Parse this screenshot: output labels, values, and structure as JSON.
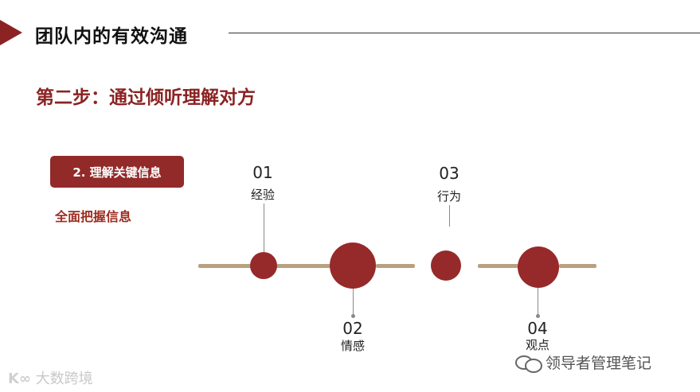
{
  "header": {
    "title": "团队内的有效沟通",
    "step_title": "第二步：通过倾听理解对方"
  },
  "left_panel": {
    "tag_label": "2. 理解关键信息",
    "subtitle": "全面把握信息"
  },
  "timeline": {
    "items": [
      {
        "number": "01",
        "label": "经验"
      },
      {
        "number": "02",
        "label": "情感"
      },
      {
        "number": "03",
        "label": "行为"
      },
      {
        "number": "04",
        "label": "观点"
      }
    ]
  },
  "watermarks": {
    "left_text": "大数跨境",
    "right_text": "领导者管理笔记"
  },
  "colors": {
    "accent": "#8b2323",
    "timeline_line": "#b8a17f",
    "dot": "#962a2a"
  }
}
